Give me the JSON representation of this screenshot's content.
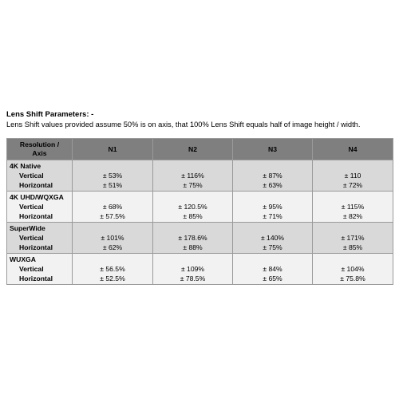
{
  "heading": "Lens Shift Parameters: -",
  "description": "Lens Shift values provided assume 50% is on axis, that 100% Lens Shift equals half of image height / width.",
  "table": {
    "header_first_line1": "Resolution /",
    "header_first_line2": "Axis",
    "columns": [
      "N1",
      "N2",
      "N3",
      "N4"
    ],
    "rows": [
      {
        "resolution": "4K Native",
        "vertical_label": "Vertical",
        "horizontal_label": "Horizontal",
        "vertical": [
          "± 53%",
          "± 116%",
          "± 87%",
          "± 110"
        ],
        "horizontal": [
          "± 51%",
          "± 75%",
          "± 63%",
          "± 72%"
        ]
      },
      {
        "resolution": "4K UHD/WQXGA",
        "vertical_label": "Vertical",
        "horizontal_label": "Horizontal",
        "vertical": [
          "± 68%",
          "± 120.5%",
          "± 95%",
          "± 115%"
        ],
        "horizontal": [
          "± 57.5%",
          "± 85%",
          "± 71%",
          "± 82%"
        ]
      },
      {
        "resolution": "SuperWide",
        "vertical_label": "Vertical",
        "horizontal_label": "Horizontal",
        "vertical": [
          "± 101%",
          "± 178.6%",
          "± 140%",
          "± 171%"
        ],
        "horizontal": [
          "± 62%",
          "± 88%",
          "± 75%",
          "± 85%"
        ]
      },
      {
        "resolution": "WUXGA",
        "vertical_label": "Vertical",
        "horizontal_label": "Horizontal",
        "vertical": [
          "± 56.5%",
          "± 109%",
          "± 84%",
          "± 104%"
        ],
        "horizontal": [
          "± 52.5%",
          "± 78.5%",
          "± 65%",
          "± 75.8%"
        ]
      }
    ]
  }
}
